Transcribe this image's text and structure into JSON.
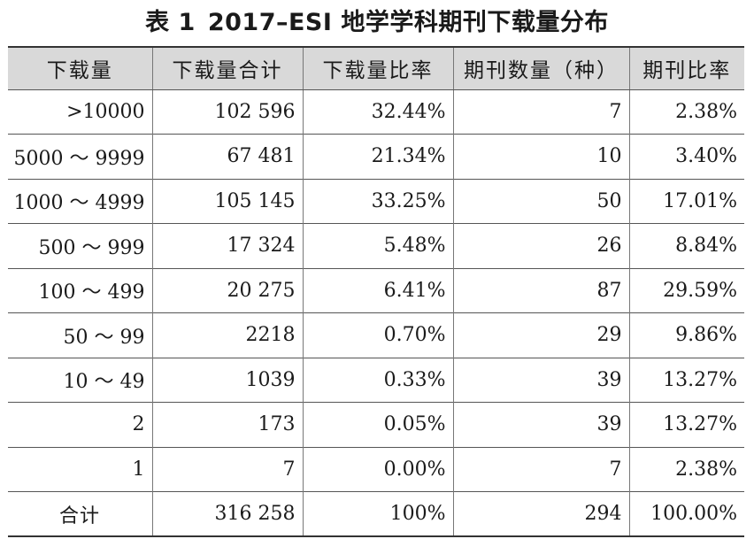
{
  "caption": {
    "label": "表 1",
    "title": "2017–ESI 地学学科期刊下载量分布"
  },
  "table": {
    "headers": [
      "下载量",
      "下载量合计",
      "下载量比率",
      "期刊数量（种）",
      "期刊比率"
    ],
    "rows": [
      {
        "range": ">10000",
        "total": "102 596",
        "ratio": "32.44%",
        "journals": "7",
        "journal_ratio": "2.38%"
      },
      {
        "range": "5000 ～ 9999",
        "total": "67 481",
        "ratio": "21.34%",
        "journals": "10",
        "journal_ratio": "3.40%"
      },
      {
        "range": "1000 ～ 4999",
        "total": "105 145",
        "ratio": "33.25%",
        "journals": "50",
        "journal_ratio": "17.01%"
      },
      {
        "range": "500 ～ 999",
        "total": "17 324",
        "ratio": "5.48%",
        "journals": "26",
        "journal_ratio": "8.84%"
      },
      {
        "range": "100 ～ 499",
        "total": "20 275",
        "ratio": "6.41%",
        "journals": "87",
        "journal_ratio": "29.59%"
      },
      {
        "range": "50 ～ 99",
        "total": "2218",
        "ratio": "0.70%",
        "journals": "29",
        "journal_ratio": "9.86%"
      },
      {
        "range": "10 ～ 49",
        "total": "1039",
        "ratio": "0.33%",
        "journals": "39",
        "journal_ratio": "13.27%"
      },
      {
        "range": "2",
        "total": "173",
        "ratio": "0.05%",
        "journals": "39",
        "journal_ratio": "13.27%"
      },
      {
        "range": "1",
        "total": "7",
        "ratio": "0.00%",
        "journals": "7",
        "journal_ratio": "2.38%"
      },
      {
        "range": "合计",
        "total": "316 258",
        "ratio": "100%",
        "journals": "294",
        "journal_ratio": "100.00%"
      }
    ]
  },
  "colors": {
    "header_background": "#d9d9d9",
    "text": "#1a1a1a",
    "rule": "#333333"
  }
}
